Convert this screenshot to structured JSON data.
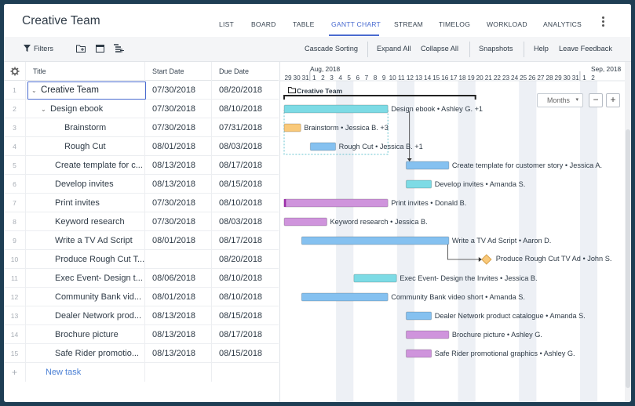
{
  "app": {
    "title": "Creative Team"
  },
  "nav": [
    "LIST",
    "BOARD",
    "TABLE",
    "GANTT CHART",
    "STREAM",
    "TIMELOG",
    "WORKLOAD",
    "ANALYTICS"
  ],
  "toolbar": {
    "filters": "Filters",
    "cascade": "Cascade Sorting",
    "expand": "Expand All",
    "collapse": "Collapse All",
    "snapshots": "Snapshots",
    "help": "Help",
    "feedback": "Leave Feedback"
  },
  "columns": {
    "title": "Title",
    "start": "Start Date",
    "due": "Due Date"
  },
  "rows": [
    {
      "n": "1",
      "title": "Creative Team",
      "start": "07/30/2018",
      "due": "08/20/2018"
    },
    {
      "n": "2",
      "title": "Design ebook",
      "start": "07/30/2018",
      "due": "08/10/2018"
    },
    {
      "n": "3",
      "title": "Brainstorm",
      "start": "07/30/2018",
      "due": "07/31/2018"
    },
    {
      "n": "4",
      "title": "Rough Cut",
      "start": "08/01/2018",
      "due": "08/03/2018"
    },
    {
      "n": "5",
      "title": "Create template for c...",
      "start": "08/13/2018",
      "due": "08/17/2018"
    },
    {
      "n": "6",
      "title": "Develop invites",
      "start": "08/13/2018",
      "due": "08/15/2018"
    },
    {
      "n": "7",
      "title": "Print invites",
      "start": "07/30/2018",
      "due": "08/10/2018"
    },
    {
      "n": "8",
      "title": "Keyword research",
      "start": "07/30/2018",
      "due": "08/03/2018"
    },
    {
      "n": "9",
      "title": "Write a TV Ad Script",
      "start": "08/01/2018",
      "due": "08/17/2018"
    },
    {
      "n": "10",
      "title": "Produce Rough Cut T...",
      "start": "",
      "due": "08/20/2018"
    },
    {
      "n": "11",
      "title": "Exec Event- Design t...",
      "start": "08/06/2018",
      "due": "08/10/2018"
    },
    {
      "n": "12",
      "title": "Community Bank vid...",
      "start": "08/01/2018",
      "due": "08/10/2018"
    },
    {
      "n": "13",
      "title": "Dealer Network prod...",
      "start": "08/13/2018",
      "due": "08/15/2018"
    },
    {
      "n": "14",
      "title": "Brochure picture",
      "start": "08/13/2018",
      "due": "08/17/2018"
    },
    {
      "n": "15",
      "title": "Safe Rider promotio...",
      "start": "08/13/2018",
      "due": "08/15/2018"
    }
  ],
  "new_task": "New task",
  "timeline": {
    "month1": "Aug, 2018",
    "month2": "Sep, 2018",
    "days": [
      "29",
      "30",
      "31",
      "1",
      "2",
      "3",
      "4",
      "5",
      "6",
      "7",
      "8",
      "9",
      "10",
      "11",
      "12",
      "13",
      "14",
      "15",
      "16",
      "17",
      "18",
      "19",
      "20",
      "21",
      "22",
      "23",
      "24",
      "25",
      "26",
      "27",
      "28",
      "29",
      "30",
      "31",
      "1",
      "2"
    ],
    "zoom": "Months"
  },
  "group_label": "Creative Team",
  "bar_labels": [
    "Design ebook • Ashley G. +1",
    "Brainstorm • Jessica B. +3",
    "Rough Cut • Jessica B. +1",
    "Create template for customer story • Jessica A.",
    "Develop invites • Amanda S.",
    "Print invites • Donald B.",
    "Keyword research • Jessica B.",
    "Write a TV Ad Script • Aaron D.",
    "Produce Rough Cut TV Ad • John S.",
    "Exec Event- Design the Invites • Jessica B.",
    "Community Bank video short • Amanda S.",
    "Dealer Network product catalogue • Amanda S.",
    "Brochure picture • Ashley G.",
    "Safe Rider promotional graphics • Ashley G."
  ],
  "colors": {
    "teal": "#7ddbe5",
    "blue": "#85c1f0",
    "orange": "#f9c97a",
    "purple": "#cf94dc",
    "accent": "#4a6bd0"
  }
}
